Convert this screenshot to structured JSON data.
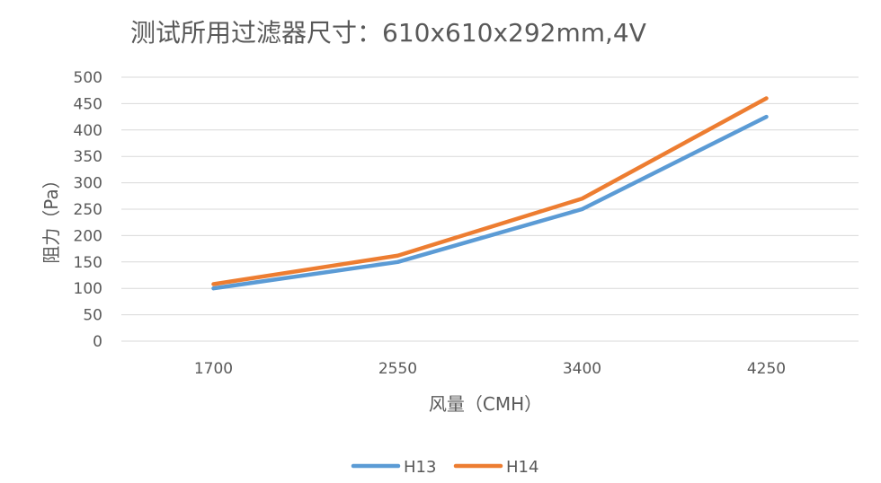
{
  "chart_data": {
    "type": "line",
    "title": "测试所用过滤器尺寸：610x610x292mm,4V",
    "xlabel": "风量（CMH）",
    "ylabel": "阻力（Pa）",
    "categories": [
      "1700",
      "2550",
      "3400",
      "4250"
    ],
    "ylim": [
      0,
      500
    ],
    "yticks": [
      0,
      50,
      100,
      150,
      200,
      250,
      300,
      350,
      400,
      450,
      500
    ],
    "grid": true,
    "legend_position": "bottom",
    "series": [
      {
        "name": "H13",
        "color": "#5b9bd5",
        "values": [
          100,
          150,
          250,
          425
        ]
      },
      {
        "name": "H14",
        "color": "#ed7d31",
        "values": [
          108,
          162,
          270,
          460
        ]
      }
    ]
  }
}
